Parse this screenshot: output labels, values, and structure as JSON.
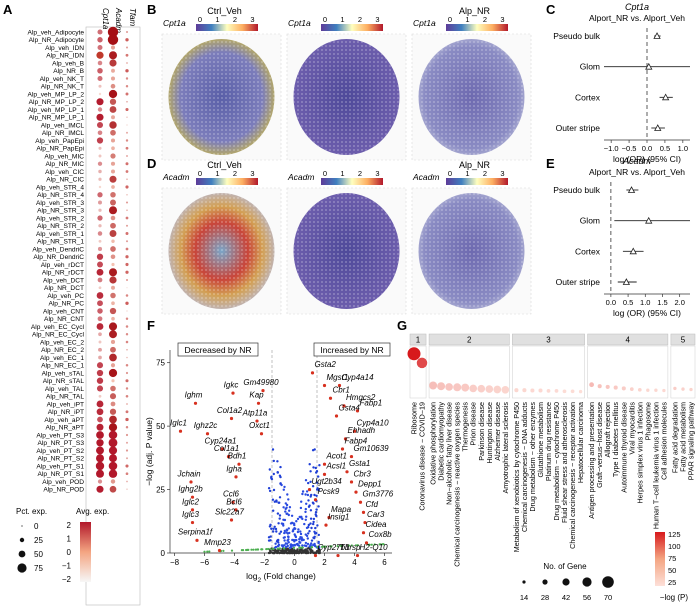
{
  "panels": {
    "A": {
      "label": "A",
      "genes": [
        "Cpt1a",
        "Acadm",
        "Tfam"
      ],
      "rows": [
        "Alp_veh_Adipocyte",
        "Alp_NR_Adipocyte",
        "Alp_veh_IDN",
        "Alp_NR_IDN",
        "Alp_veh_B",
        "Alp_NR_B",
        "Alp_veh_NK_T",
        "Alp_NR_NK_T",
        "Alp_veh_MP_LP_2",
        "Alp_NR_MP_LP_2",
        "Alp_veh_MP_LP_1",
        "Alp_NR_MP_LP_1",
        "Alp_veh_IMCL",
        "Alp_NR_IMCL",
        "Alp_veh_PapEpi",
        "Alp_NR_PapEpi",
        "Alp_veh_MIC",
        "Alp_NR_MIC",
        "Alp_veh_CIC",
        "Alp_NR_CIC",
        "Alp_veh_STR_4",
        "Alp_NR_STR_4",
        "Alp_veh_STR_3",
        "Alp_NR_STR_3",
        "Alp_veh_STR_2",
        "Alp_NR_STR_2",
        "Alp_veh_STR_1",
        "Alp_NR_STR_1",
        "Alp_veh_DendriC",
        "Alp_NR_DendriC",
        "Alp_veh_rDCT",
        "Alp_NR_rDCT",
        "Alp_veh_DCT",
        "Alp_NR_DCT",
        "Alp_veh_PC",
        "Alp_NR_PC",
        "Alp_veh_CNT",
        "Alp_NR_CNT",
        "Alp_veh_EC_Cycl",
        "Alp_NR_EC_Cycl",
        "Alp_veh_EC_2",
        "Alp_NR_EC_2",
        "Alp_veh_EC_1",
        "Alp_NR_EC_1",
        "Alp_veh_sTAL",
        "Alp_NR_sTAL",
        "Alp_veh_TAL",
        "Alp_NR_TAL",
        "Alp_veh_iPT",
        "Alp_NR_iPT",
        "Alp_veh_aPT",
        "Alp_NR_aPT",
        "Alp_veh_PT_S3",
        "Alp_NR_PT_S3",
        "Alp_veh_PT_S2",
        "Alp_NR_PT_S2",
        "Alp_veh_PT_S1",
        "Alp_NR_PT_S1",
        "Alp_veh_POD",
        "Alp_NR_POD"
      ],
      "legend_pct_title": "Pct. exp.",
      "legend_pct_values": [
        "0",
        "25",
        "50",
        "75"
      ],
      "legend_avg_title": "Avg. exp.",
      "legend_avg_ticks": [
        "2",
        "1",
        "0",
        "−1",
        "−2"
      ]
    },
    "B": {
      "label": "B",
      "titles": [
        "Ctrl_Veh",
        "",
        "Alp_NR"
      ],
      "gene": "Cpt1a",
      "scale_ticks": [
        "0",
        "1",
        "2",
        "3"
      ]
    },
    "C": {
      "label": "C",
      "gene": "Cpt1a",
      "comparison": "Alport_NR vs. Alport_Veh",
      "xlabel": "log (OR) (95% CI)",
      "xticks": [
        "−1.0",
        "−0.5",
        "0.0",
        "0.5",
        "1.0"
      ],
      "categories": [
        "Pseudo bulk",
        "Glom",
        "Cortex",
        "Outer stripe"
      ],
      "or": [
        0.28,
        0.05,
        0.52,
        0.3
      ],
      "ci_low": [
        0.2,
        -1.2,
        0.35,
        0.12
      ],
      "ci_high": [
        0.38,
        1.2,
        0.72,
        0.5
      ],
      "xlim": [
        -1.2,
        1.2
      ]
    },
    "D": {
      "label": "D",
      "titles": [
        "Ctrl_Veh",
        "",
        "Alp_NR"
      ],
      "gene": "Acadm",
      "scale_ticks": [
        "0",
        "1",
        "2",
        "3"
      ]
    },
    "E": {
      "label": "E",
      "gene": "Acadm",
      "comparison": "Alport_NR vs. Alport_Veh",
      "xlabel": "log (OR) (95% CI)",
      "xticks": [
        "0.0",
        "0.5",
        "1.0",
        "1.5",
        "2.0"
      ],
      "categories": [
        "Pseudo bulk",
        "Glom",
        "Cortex",
        "Outer stripe"
      ],
      "or": [
        0.6,
        1.1,
        0.65,
        0.45
      ],
      "ci_low": [
        0.45,
        0.1,
        0.35,
        0.2
      ],
      "ci_high": [
        0.8,
        2.3,
        0.95,
        0.75
      ],
      "xlim": [
        -0.2,
        2.3
      ]
    },
    "F": {
      "label": "F",
      "xlabel_prefix": "log",
      "xlabel_sub": "2",
      "xlabel_suffix": " (Fold change)",
      "ylabel": "−log (adj. P value)",
      "xticks": [
        "−8",
        "−6",
        "−4",
        "−2",
        "0",
        "2",
        "4",
        "6"
      ],
      "yticks": [
        "0",
        "25",
        "50",
        "75"
      ],
      "box_decreased": "Decreased by NR",
      "box_increased": "Increased by NR",
      "labels_left": [
        {
          "t": "Igkc",
          "x": -4.1,
          "y": 66
        },
        {
          "t": "Gm49980",
          "x": -2.1,
          "y": 67
        },
        {
          "t": "Ighm",
          "x": -6.6,
          "y": 62
        },
        {
          "t": "Kap",
          "x": -2.4,
          "y": 62
        },
        {
          "t": "Col1a2",
          "x": -4.2,
          "y": 56
        },
        {
          "t": "Atp11a",
          "x": -2.5,
          "y": 55
        },
        {
          "t": "Iglc1",
          "x": -7.6,
          "y": 51
        },
        {
          "t": "Ighz2c",
          "x": -5.8,
          "y": 50
        },
        {
          "t": "Oxct1",
          "x": -2.2,
          "y": 50
        },
        {
          "t": "Cyp24a1",
          "x": -4.8,
          "y": 44
        },
        {
          "t": "Col1a1",
          "x": -4.4,
          "y": 41
        },
        {
          "t": "Bdh1",
          "x": -3.7,
          "y": 38
        },
        {
          "t": "Igha",
          "x": -3.9,
          "y": 33
        },
        {
          "t": "Jchain",
          "x": -6.9,
          "y": 31
        },
        {
          "t": "Ighg2b",
          "x": -6.8,
          "y": 25
        },
        {
          "t": "Ccl6",
          "x": -4.1,
          "y": 23
        },
        {
          "t": "Bcl6",
          "x": -3.9,
          "y": 20
        },
        {
          "t": "Iglc2",
          "x": -6.8,
          "y": 20
        },
        {
          "t": "Slc22a7",
          "x": -4.2,
          "y": 16
        },
        {
          "t": "Iglc3",
          "x": -6.8,
          "y": 15
        },
        {
          "t": "Serpina1f",
          "x": -6.5,
          "y": 8
        },
        {
          "t": "Mmp23",
          "x": -5.0,
          "y": 4
        }
      ],
      "labels_right": [
        {
          "t": "Gsta2",
          "x": 1.2,
          "y": 74
        },
        {
          "t": "Cyp4a14",
          "x": 3.0,
          "y": 69
        },
        {
          "t": "Mgst1",
          "x": 2.0,
          "y": 69
        },
        {
          "t": "Cbr1",
          "x": 2.4,
          "y": 64
        },
        {
          "t": "Hmgcs2",
          "x": 3.3,
          "y": 61
        },
        {
          "t": "Fabp1",
          "x": 4.2,
          "y": 59
        },
        {
          "t": "Gsta4",
          "x": 2.8,
          "y": 57
        },
        {
          "t": "Cyp4a10",
          "x": 4.0,
          "y": 51
        },
        {
          "t": "Ehhadh",
          "x": 3.4,
          "y": 48
        },
        {
          "t": "Fabp4",
          "x": 3.2,
          "y": 44
        },
        {
          "t": "Gm10639",
          "x": 3.8,
          "y": 41
        },
        {
          "t": "Acot1",
          "x": 2.0,
          "y": 38
        },
        {
          "t": "Gsta1",
          "x": 3.5,
          "y": 35
        },
        {
          "t": "Acsl1",
          "x": 2.0,
          "y": 34
        },
        {
          "t": "Cbr3",
          "x": 3.8,
          "y": 31
        },
        {
          "t": "Ugt2b34",
          "x": 1.0,
          "y": 28
        },
        {
          "t": "Depp1",
          "x": 4.1,
          "y": 27
        },
        {
          "t": "Pcsk9",
          "x": 1.4,
          "y": 24
        },
        {
          "t": "Gm3776",
          "x": 4.4,
          "y": 23
        },
        {
          "t": "Cfd",
          "x": 4.6,
          "y": 19
        },
        {
          "t": "Mapa",
          "x": 2.3,
          "y": 17
        },
        {
          "t": "Car3",
          "x": 4.7,
          "y": 15
        },
        {
          "t": "Insig1",
          "x": 2.1,
          "y": 14
        },
        {
          "t": "Cidea",
          "x": 4.6,
          "y": 11
        },
        {
          "t": "Cox8b",
          "x": 4.8,
          "y": 7
        },
        {
          "t": "Cyp27b1",
          "x": 1.4,
          "y": 2
        },
        {
          "t": "Thrsp",
          "x": 2.9,
          "y": 2
        },
        {
          "t": "H2-Q10",
          "x": 4.2,
          "y": 2
        }
      ]
    },
    "G": {
      "label": "G",
      "groups": [
        "1",
        "2",
        "3",
        "4",
        "5"
      ],
      "terms": [
        {
          "t": "Ribosome",
          "g": 1,
          "n": 70,
          "p": 125
        },
        {
          "t": "Coronavirus disease − COVID−19",
          "g": 1,
          "n": 56,
          "p": 100
        },
        {
          "t": "Oxidative phosphorylation",
          "g": 2,
          "n": 42,
          "p": 38
        },
        {
          "t": "Diabetic cardiomyopathy",
          "g": 2,
          "n": 42,
          "p": 36
        },
        {
          "t": "Non−alcoholic fatty liver disease",
          "g": 2,
          "n": 40,
          "p": 34
        },
        {
          "t": "Chemical carcinogenesis − reactive oxygen species",
          "g": 2,
          "n": 42,
          "p": 33
        },
        {
          "t": "Thermogenesis",
          "g": 2,
          "n": 42,
          "p": 32
        },
        {
          "t": "Prion disease",
          "g": 2,
          "n": 40,
          "p": 30
        },
        {
          "t": "Parkinson disease",
          "g": 2,
          "n": 40,
          "p": 29
        },
        {
          "t": "Huntington disease",
          "g": 2,
          "n": 40,
          "p": 28
        },
        {
          "t": "Alzheimer disease",
          "g": 2,
          "n": 40,
          "p": 27
        },
        {
          "t": "Amyotrophic lateral sclerosis",
          "g": 2,
          "n": 40,
          "p": 26
        },
        {
          "t": "Metabolism of xenobiotics by cytochrome P450",
          "g": 3,
          "n": 20,
          "p": 25
        },
        {
          "t": "Chemical carcinogenesis − DNA adducts",
          "g": 3,
          "n": 20,
          "p": 25
        },
        {
          "t": "Drug metabolism − other enzymes",
          "g": 3,
          "n": 20,
          "p": 24
        },
        {
          "t": "Glutathione metabolism",
          "g": 3,
          "n": 20,
          "p": 24
        },
        {
          "t": "Platinum drug resistance",
          "g": 3,
          "n": 18,
          "p": 23
        },
        {
          "t": "Drug metabolism − cytochrome P450",
          "g": 3,
          "n": 18,
          "p": 23
        },
        {
          "t": "Fluid shear stress and atherosclerosis",
          "g": 3,
          "n": 18,
          "p": 22
        },
        {
          "t": "Chemical carcinogenesis − receptor activation",
          "g": 3,
          "n": 18,
          "p": 22
        },
        {
          "t": "Hepatocellular carcinoma",
          "g": 3,
          "n": 16,
          "p": 21
        },
        {
          "t": "Antigen processing and presentation",
          "g": 4,
          "n": 24,
          "p": 40
        },
        {
          "t": "Graft−versus−host disease",
          "g": 4,
          "n": 20,
          "p": 36
        },
        {
          "t": "Allograft rejection",
          "g": 4,
          "n": 20,
          "p": 34
        },
        {
          "t": "Type I diabetes mellitus",
          "g": 4,
          "n": 20,
          "p": 32
        },
        {
          "t": "Autoimmune thyroid disease",
          "g": 4,
          "n": 20,
          "p": 30
        },
        {
          "t": "Viral myocarditis",
          "g": 4,
          "n": 18,
          "p": 28
        },
        {
          "t": "Herpes simplex virus 1 infection",
          "g": 4,
          "n": 18,
          "p": 26
        },
        {
          "t": "Phagosome",
          "g": 4,
          "n": 16,
          "p": 25
        },
        {
          "t": "Human T−cell leukemia virus 1 infection",
          "g": 4,
          "n": 16,
          "p": 25
        },
        {
          "t": "Cell adhesion molecules",
          "g": 4,
          "n": 16,
          "p": 24
        },
        {
          "t": "Fatty acid degradation",
          "g": 5,
          "n": 16,
          "p": 30
        },
        {
          "t": "Fatty acid metabolism",
          "g": 5,
          "n": 16,
          "p": 28
        },
        {
          "t": "PPAR signaling pathway",
          "g": 5,
          "n": 16,
          "p": 27
        }
      ],
      "legend_n_title": "No. of Gene",
      "legend_n_values": [
        "14",
        "28",
        "42",
        "56",
        "70"
      ],
      "legend_p_title": "−log (P)",
      "legend_p_ticks": [
        "125",
        "100",
        "75",
        "50",
        "25"
      ]
    }
  }
}
